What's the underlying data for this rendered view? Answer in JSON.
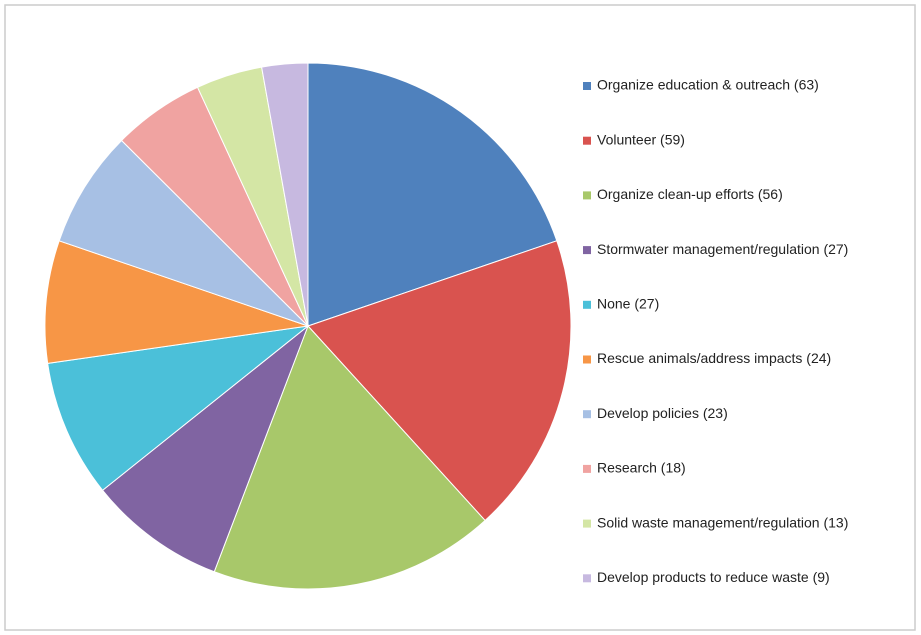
{
  "chart_data": {
    "type": "pie",
    "categories": [
      "Organize education & outreach (63)",
      "Volunteer (59)",
      "Organize clean-up efforts (56)",
      "Stormwater management/regulation (27)",
      "None (27)",
      "Rescue animals/address impacts (24)",
      "Develop policies (23)",
      "Research (18)",
      "Solid waste management/regulation (13)",
      "Develop products to reduce waste (9)"
    ],
    "values": [
      63,
      59,
      56,
      27,
      27,
      24,
      23,
      18,
      13,
      9
    ],
    "colors": [
      "#4f81bd",
      "#d9534f",
      "#a8c86a",
      "#8064a2",
      "#4bc0d9",
      "#f79646",
      "#a7c0e4",
      "#f0a3a1",
      "#d4e6a5",
      "#c7b9e0"
    ],
    "legend": "right"
  }
}
